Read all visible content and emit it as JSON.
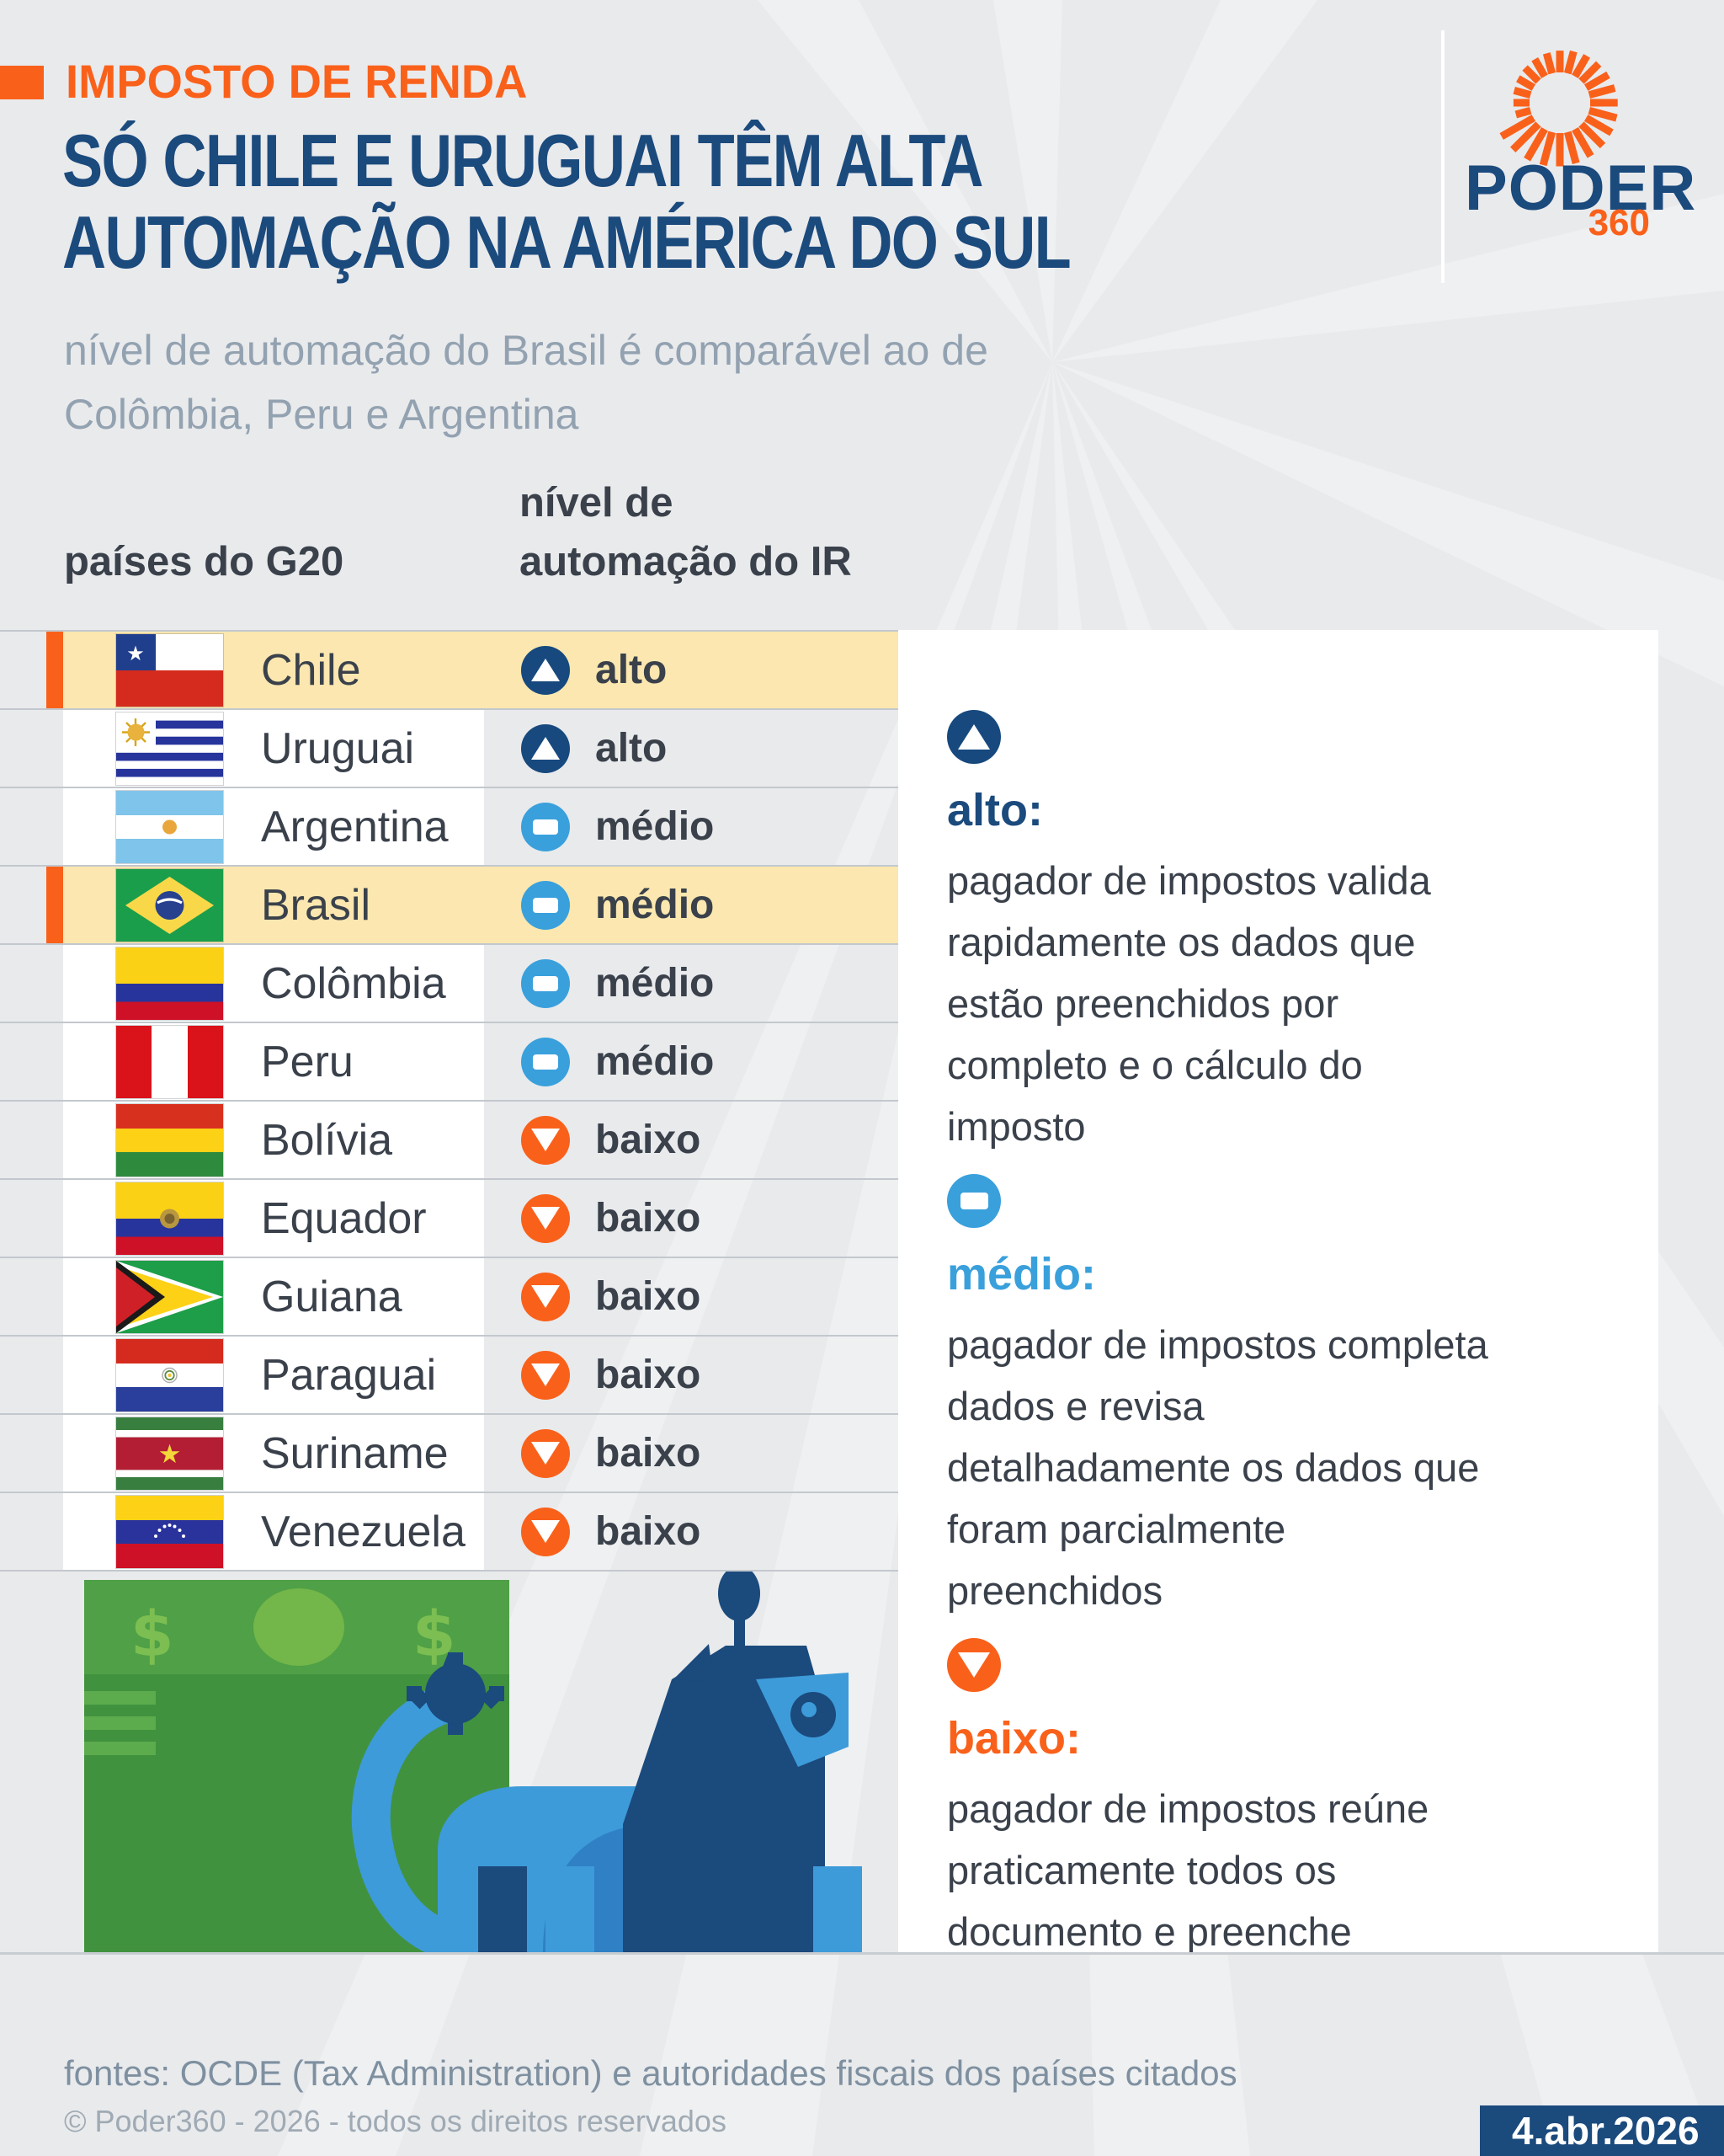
{
  "header": {
    "kicker": "IMPOSTO DE RENDA",
    "title_line1": "SÓ CHILE E URUGUAI TÊM ALTA",
    "title_line2": "AUTOMAÇÃO NA AMÉRICA DO SUL",
    "subtitle_line1": "nível de automação do Brasil é comparável ao de",
    "subtitle_line2": "Colômbia, Peru e Argentina",
    "logo": {
      "brand": "PODER",
      "sub": "360"
    }
  },
  "table": {
    "col1_header": "países do G20",
    "col2_header_line1": "nível de",
    "col2_header_line2": "automação do IR",
    "rows": [
      {
        "country": "Chile",
        "flag": "cl",
        "level": "alto",
        "highlighted": true
      },
      {
        "country": "Uruguai",
        "flag": "uy",
        "level": "alto",
        "highlighted": false
      },
      {
        "country": "Argentina",
        "flag": "ar",
        "level": "médio",
        "highlighted": false
      },
      {
        "country": "Brasil",
        "flag": "br",
        "level": "médio",
        "highlighted": true
      },
      {
        "country": "Colômbia",
        "flag": "co",
        "level": "médio",
        "highlighted": false
      },
      {
        "country": "Peru",
        "flag": "pe",
        "level": "médio",
        "highlighted": false
      },
      {
        "country": "Bolívia",
        "flag": "bo",
        "level": "baixo",
        "highlighted": false
      },
      {
        "country": "Equador",
        "flag": "ec",
        "level": "baixo",
        "highlighted": false
      },
      {
        "country": "Guiana",
        "flag": "gy",
        "level": "baixo",
        "highlighted": false
      },
      {
        "country": "Paraguai",
        "flag": "py",
        "level": "baixo",
        "highlighted": false
      },
      {
        "country": "Suriname",
        "flag": "sr",
        "level": "baixo",
        "highlighted": false
      },
      {
        "country": "Venezuela",
        "flag": "ve",
        "level": "baixo",
        "highlighted": false
      }
    ]
  },
  "legend": [
    {
      "level": "alto",
      "label": "alto:",
      "text": "pagador de impostos valida rapidamente os dados que estão preenchidos por completo e o cálculo do imposto"
    },
    {
      "level": "médio",
      "label": "médio:",
      "text": "pagador de impostos completa dados e revisa detalhadamente os dados que foram parcialmente preenchidos"
    },
    {
      "level": "baixo",
      "label": "baixo:",
      "text": "pagador de impostos reúne praticamente todos os documento e preenche"
    }
  ],
  "footer": {
    "sources": "fontes: OCDE (Tax Administration) e autoridades fiscais dos países citados",
    "copyright": "© Poder360 - 2026 - todos os direitos reservados",
    "date": "4.abr.2026"
  },
  "colors": {
    "accent_orange": "#F9611B",
    "navy": "#1B4A7D",
    "medium_blue": "#39A0DC",
    "highlight_yellow": "#FBE7AF",
    "text_dark": "#3A414B",
    "subtitle_gray": "#93A2B1",
    "background": "#E9EAEC"
  },
  "chart_data": {
    "type": "table",
    "title": "SÓ CHILE E URUGUAI TÊM ALTA AUTOMAÇÃO NA AMÉRICA DO SUL",
    "subtitle": "nível de automação do Brasil é comparável ao de Colômbia, Peru e Argentina",
    "columns": [
      "países do G20",
      "nível de automação do IR"
    ],
    "rows": [
      [
        "Chile",
        "alto"
      ],
      [
        "Uruguai",
        "alto"
      ],
      [
        "Argentina",
        "médio"
      ],
      [
        "Brasil",
        "médio"
      ],
      [
        "Colômbia",
        "médio"
      ],
      [
        "Peru",
        "médio"
      ],
      [
        "Bolívia",
        "baixo"
      ],
      [
        "Equador",
        "baixo"
      ],
      [
        "Guiana",
        "baixo"
      ],
      [
        "Paraguai",
        "baixo"
      ],
      [
        "Suriname",
        "baixo"
      ],
      [
        "Venezuela",
        "baixo"
      ]
    ],
    "highlighted_rows": [
      "Chile",
      "Brasil"
    ],
    "levels": [
      "alto",
      "médio",
      "baixo"
    ]
  }
}
